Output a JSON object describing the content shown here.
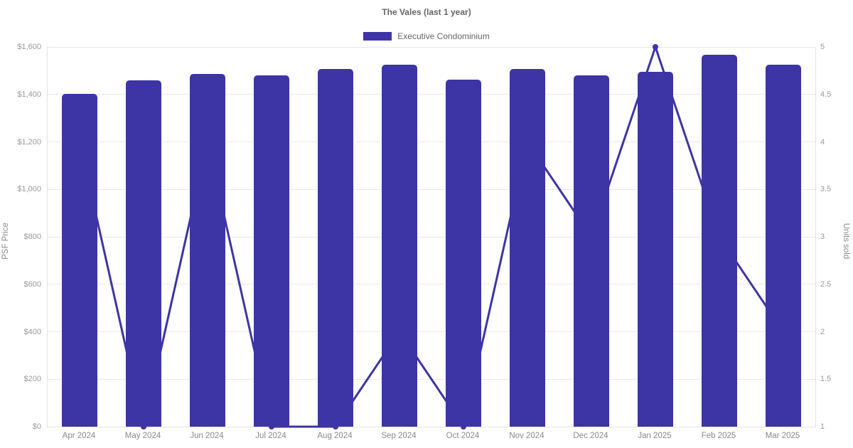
{
  "chart": {
    "title": "The Vales (last 1 year)",
    "legend": {
      "label": "Executive Condominium"
    },
    "left_axis_title": "PSF Price",
    "right_axis_title": "Units sold"
  },
  "chart_data": {
    "type": "bar",
    "subtype": "bar+line combo, dual y-axes",
    "title": "The Vales (last 1 year)",
    "categories": [
      "Apr 2024",
      "May 2024",
      "Jun 2024",
      "Jul 2024",
      "Aug 2024",
      "Sep 2024",
      "Oct 2024",
      "Nov 2024",
      "Dec 2024",
      "Jan 2025",
      "Feb 2025",
      "Mar 2025"
    ],
    "series": [
      {
        "name": "Executive Condominium",
        "type": "bar",
        "axis": "left",
        "ylabel": "PSF Price",
        "values": [
          1403,
          1458,
          1487,
          1480,
          1508,
          1525,
          1461,
          1506,
          1480,
          1494,
          1568,
          1524
        ]
      },
      {
        "name": "Units sold",
        "type": "line",
        "axis": "right",
        "ylabel": "Units sold",
        "values": [
          4,
          1,
          4,
          1,
          1,
          2,
          1,
          4,
          3,
          5,
          3,
          2
        ]
      }
    ],
    "left_axis": {
      "title": "PSF Price",
      "min": 0,
      "max": 1600,
      "step": 200,
      "tick_labels": [
        "$0",
        "$200",
        "$400",
        "$600",
        "$800",
        "$1,000",
        "$1,200",
        "$1,400",
        "$1,600"
      ]
    },
    "right_axis": {
      "title": "Units sold",
      "min": 1,
      "max": 5,
      "step": 0.5,
      "tick_labels": [
        "1",
        "1.5",
        "2",
        "2.5",
        "3",
        "3.5",
        "4",
        "4.5",
        "5"
      ]
    },
    "grid": "horizontal gridlines only",
    "legend_position": "top center",
    "colors": {
      "bar": "#3D34A6",
      "line": "#3D34A6",
      "marker": "#3D34A6",
      "grid": "#e8e8e8",
      "axis_border": "#e3e3e3",
      "title_text": "#666666",
      "tick_text": "#999999",
      "axis_title_text": "#8a8a8a"
    }
  }
}
